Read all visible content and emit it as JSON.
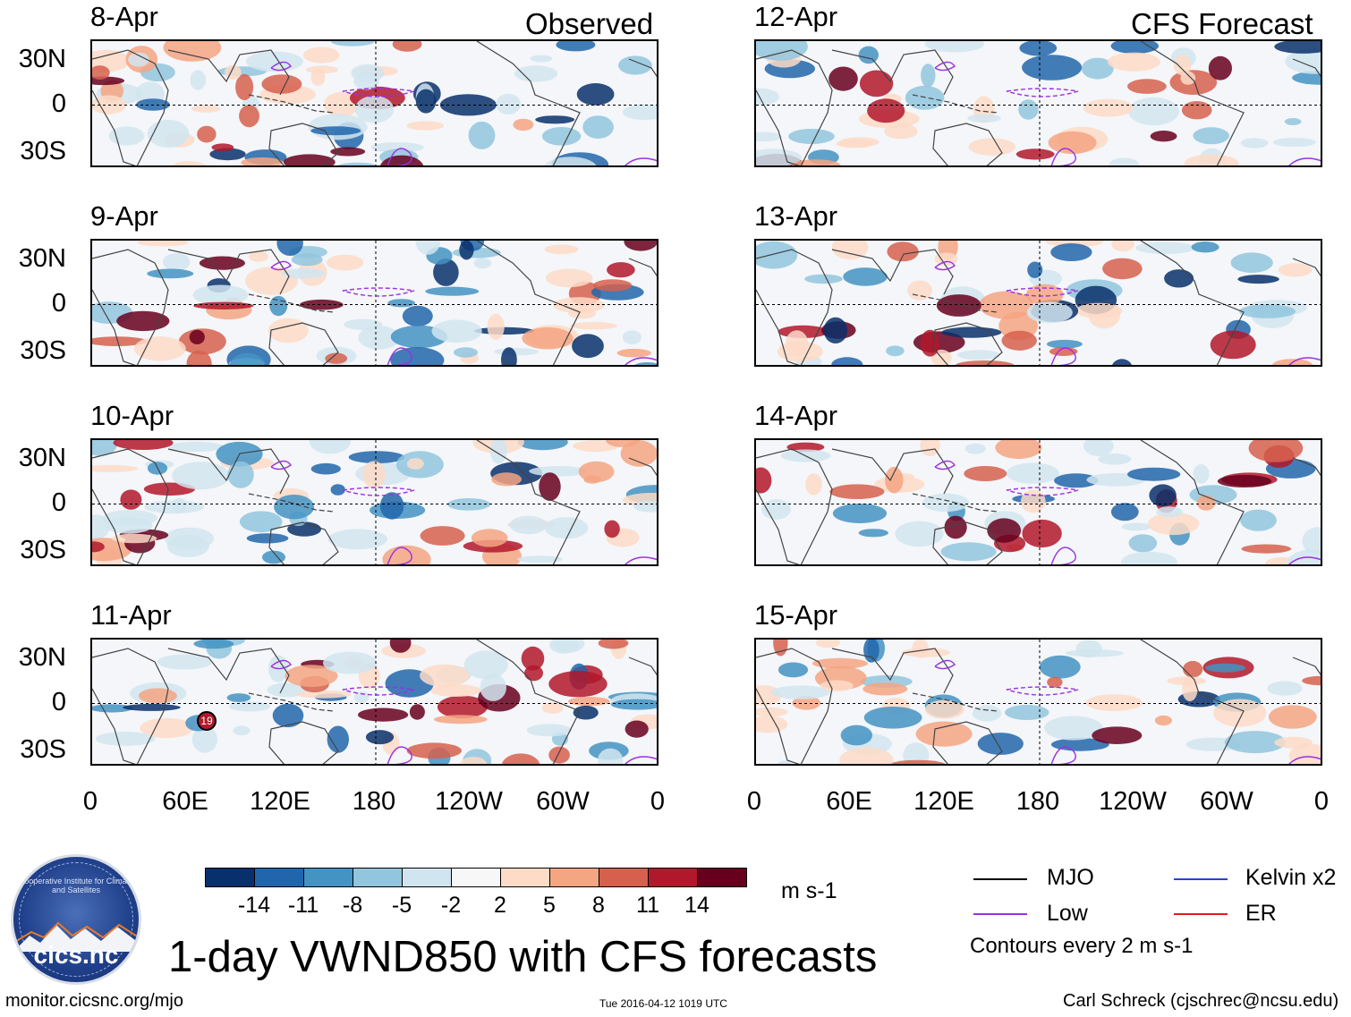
{
  "headers": {
    "observed": "Observed",
    "forecast": "CFS Forecast"
  },
  "panels_left": [
    {
      "date": "8-Apr",
      "storm": null
    },
    {
      "date": "9-Apr",
      "storm": null
    },
    {
      "date": "10-Apr",
      "storm": null
    },
    {
      "date": "11-Apr",
      "storm": "19"
    }
  ],
  "panels_right": [
    {
      "date": "12-Apr"
    },
    {
      "date": "13-Apr"
    },
    {
      "date": "14-Apr"
    },
    {
      "date": "15-Apr"
    }
  ],
  "lat_labels": [
    "30N",
    "0",
    "30S"
  ],
  "lon_labels": [
    "0",
    "60E",
    "120E",
    "180",
    "120W",
    "60W",
    "0"
  ],
  "colorbar": {
    "colors": [
      "#08306b",
      "#2166ac",
      "#4393c3",
      "#92c5de",
      "#d1e5f0",
      "#f7f7f7",
      "#fddbc7",
      "#f4a582",
      "#d6604d",
      "#b2182b",
      "#67001f"
    ],
    "labels": [
      "-14",
      "-11",
      "-8",
      "-5",
      "-2",
      "2",
      "5",
      "8",
      "11",
      "14"
    ],
    "units": "m s-1"
  },
  "legend": {
    "items": [
      {
        "name": "MJO",
        "color": "#000000"
      },
      {
        "name": "Kelvin x2",
        "color": "#2b3fd6"
      },
      {
        "name": "Low",
        "color": "#9b30e0"
      },
      {
        "name": "ER",
        "color": "#e01b1b"
      }
    ],
    "contours_note": "Contours every 2 m s-1"
  },
  "logo": {
    "text": "cics.nc",
    "ring_text": "Cooperative Institute for Climate and Satellites"
  },
  "title": "1-day VWND850 with CFS forecasts",
  "footer": {
    "url": "monitor.cicsnc.org/mjo",
    "timestamp": "Tue 2016-04-12 1019 UTC",
    "author": "Carl Schreck (cjschrec@ncsu.edu)"
  }
}
